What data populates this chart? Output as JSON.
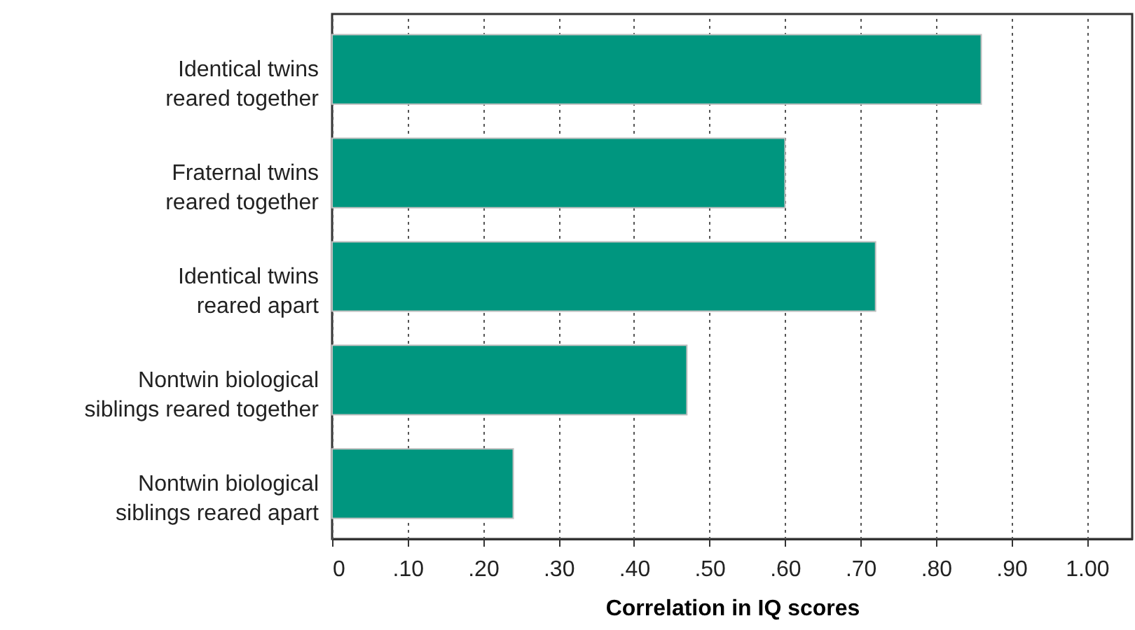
{
  "chart_data": {
    "type": "bar",
    "orientation": "horizontal",
    "xlabel": "Correlation in IQ scores",
    "categories": [
      "Identical twins\nreared together",
      "Fraternal twins\nreared together",
      "Identical twins\nreared apart",
      "Nontwin biological\nsiblings reared together",
      "Nontwin biological\nsiblings reared apart"
    ],
    "values": [
      0.86,
      0.6,
      0.72,
      0.47,
      0.24
    ],
    "color": "#00967f",
    "xlim": [
      0,
      1.06
    ],
    "xticks": [
      0,
      {
        "value": 0.1,
        "label": ".10"
      },
      {
        "value": 0.2,
        "label": ".20"
      },
      {
        "value": 0.3,
        "label": ".30"
      },
      {
        "value": 0.4,
        "label": ".40"
      },
      {
        "value": 0.5,
        "label": ".50"
      },
      {
        "value": 0.6,
        "label": ".60"
      },
      {
        "value": 0.7,
        "label": ".70"
      },
      {
        "value": 0.8,
        "label": ".80"
      },
      {
        "value": 0.9,
        "label": ".90"
      },
      {
        "value": 1,
        "label": "1.00"
      }
    ],
    "grid": "x"
  }
}
